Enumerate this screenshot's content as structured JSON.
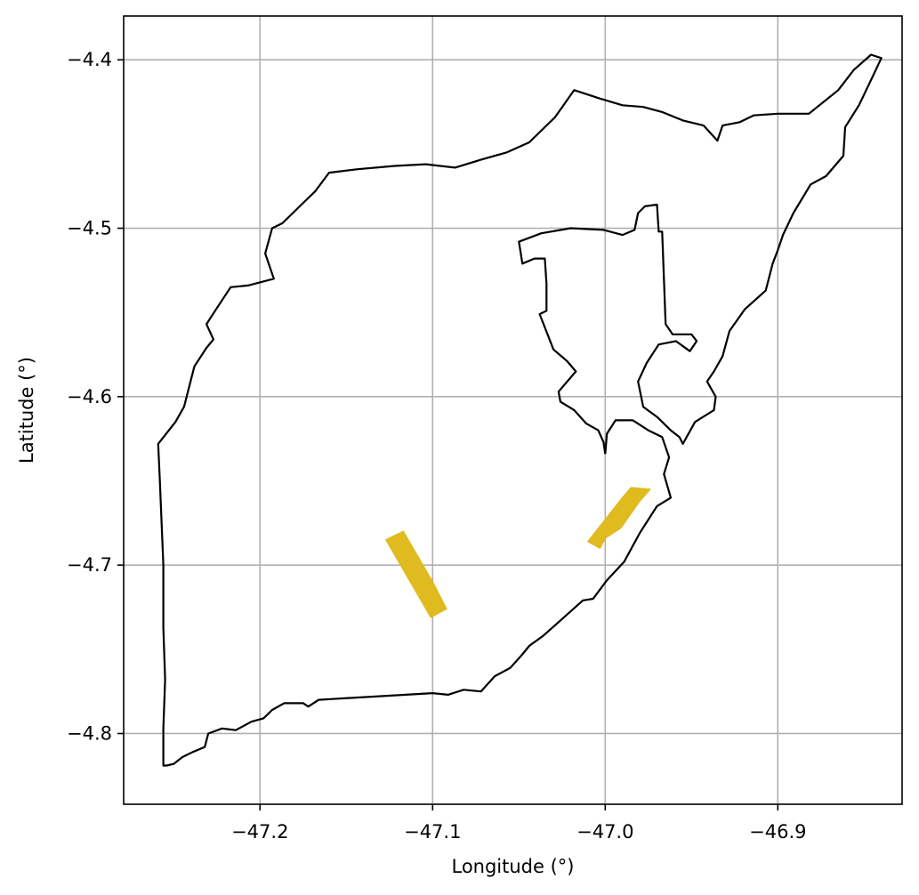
{
  "chart_data": {
    "type": "map",
    "xlabel": "Longitude (°)",
    "ylabel": "Latitude (°)",
    "xlim": [
      -47.279,
      -46.828
    ],
    "ylim": [
      -4.842,
      -4.374
    ],
    "grid": true,
    "x_ticks": [
      -47.2,
      -47.1,
      -47.0,
      -46.9
    ],
    "x_tick_labels": [
      "−47.2",
      "−47.1",
      "−47.0",
      "−46.9"
    ],
    "y_ticks": [
      -4.4,
      -4.5,
      -4.6,
      -4.7,
      -4.8
    ],
    "y_tick_labels": [
      "−4.4",
      "−4.5",
      "−4.6",
      "−4.7",
      "−4.8"
    ],
    "colors": {
      "boundary": "#000000",
      "highlight": "#dfbb1f",
      "grid": "#b0b0b0"
    },
    "outline": [
      [
        -47.254,
        -4.819
      ],
      [
        -47.25,
        -4.818
      ],
      [
        -47.245,
        -4.814
      ],
      [
        -47.239,
        -4.811
      ],
      [
        -47.232,
        -4.808
      ],
      [
        -47.23,
        -4.8
      ],
      [
        -47.222,
        -4.797
      ],
      [
        -47.214,
        -4.798
      ],
      [
        -47.205,
        -4.793
      ],
      [
        -47.198,
        -4.791
      ],
      [
        -47.193,
        -4.786
      ],
      [
        -47.186,
        -4.782
      ],
      [
        -47.175,
        -4.782
      ],
      [
        -47.172,
        -4.784
      ],
      [
        -47.166,
        -4.78
      ],
      [
        -47.1,
        -4.776
      ],
      [
        -47.091,
        -4.777
      ],
      [
        -47.082,
        -4.774
      ],
      [
        -47.072,
        -4.775
      ],
      [
        -47.064,
        -4.766
      ],
      [
        -47.055,
        -4.761
      ],
      [
        -47.048,
        -4.753
      ],
      [
        -47.044,
        -4.748
      ],
      [
        -47.036,
        -4.742
      ],
      [
        -47.025,
        -4.732
      ],
      [
        -47.013,
        -4.721
      ],
      [
        -47.007,
        -4.72
      ],
      [
        -46.999,
        -4.709
      ],
      [
        -46.989,
        -4.698
      ],
      [
        -46.98,
        -4.681
      ],
      [
        -46.97,
        -4.665
      ],
      [
        -46.962,
        -4.66
      ],
      [
        -46.966,
        -4.646
      ],
      [
        -46.963,
        -4.636
      ],
      [
        -46.967,
        -4.624
      ],
      [
        -46.975,
        -4.62
      ],
      [
        -46.984,
        -4.614
      ],
      [
        -46.994,
        -4.614
      ],
      [
        -46.999,
        -4.622
      ],
      [
        -47.0,
        -4.634
      ]
    ],
    "bay": [
      [
        -47.0,
        -4.634
      ],
      [
        -47.001,
        -4.627
      ],
      [
        -47.004,
        -4.62
      ],
      [
        -47.011,
        -4.616
      ],
      [
        -47.018,
        -4.608
      ],
      [
        -47.026,
        -4.603
      ],
      [
        -47.027,
        -4.597
      ],
      [
        -47.022,
        -4.591
      ],
      [
        -47.017,
        -4.585
      ],
      [
        -47.022,
        -4.579
      ],
      [
        -47.03,
        -4.572
      ],
      [
        -47.038,
        -4.551
      ],
      [
        -47.034,
        -4.549
      ],
      [
        -47.034,
        -4.533
      ],
      [
        -47.035,
        -4.518
      ],
      [
        -47.041,
        -4.518
      ],
      [
        -47.048,
        -4.521
      ],
      [
        -47.05,
        -4.508
      ],
      [
        -47.037,
        -4.503
      ],
      [
        -47.02,
        -4.5
      ],
      [
        -47.001,
        -4.501
      ],
      [
        -46.99,
        -4.504
      ],
      [
        -46.983,
        -4.501
      ],
      [
        -46.981,
        -4.491
      ],
      [
        -46.977,
        -4.487
      ],
      [
        -46.97,
        -4.486
      ],
      [
        -46.969,
        -4.502
      ],
      [
        -46.967,
        -4.502
      ],
      [
        -46.965,
        -4.557
      ],
      [
        -46.961,
        -4.563
      ],
      [
        -46.95,
        -4.563
      ],
      [
        -46.947,
        -4.567
      ],
      [
        -46.951,
        -4.573
      ],
      [
        -46.959,
        -4.567
      ],
      [
        -46.969,
        -4.569
      ],
      [
        -46.976,
        -4.58
      ],
      [
        -46.981,
        -4.591
      ],
      [
        -46.978,
        -4.606
      ],
      [
        -46.97,
        -4.612
      ],
      [
        -46.962,
        -4.62
      ],
      [
        -46.957,
        -4.624
      ],
      [
        -46.955,
        -4.628
      ],
      [
        -46.948,
        -4.615
      ],
      [
        -46.937,
        -4.608
      ],
      [
        -46.936,
        -4.6
      ],
      [
        -46.941,
        -4.591
      ],
      [
        -46.937,
        -4.585
      ],
      [
        -46.932,
        -4.576
      ],
      [
        -46.928,
        -4.561
      ],
      [
        -46.919,
        -4.548
      ],
      [
        -46.907,
        -4.537
      ],
      [
        -46.903,
        -4.521
      ],
      [
        -46.9,
        -4.513
      ],
      [
        -46.897,
        -4.504
      ],
      [
        -46.891,
        -4.491
      ],
      [
        -46.881,
        -4.474
      ],
      [
        -46.872,
        -4.469
      ],
      [
        -46.862,
        -4.457
      ],
      [
        -46.861,
        -4.44
      ],
      [
        -46.853,
        -4.427
      ],
      [
        -46.846,
        -4.412
      ],
      [
        -46.84,
        -4.399
      ],
      [
        -46.846,
        -4.397
      ],
      [
        -46.856,
        -4.406
      ],
      [
        -46.865,
        -4.418
      ],
      [
        -46.882,
        -4.432
      ],
      [
        -46.9,
        -4.432
      ],
      [
        -46.914,
        -4.433
      ],
      [
        -46.922,
        -4.437
      ],
      [
        -46.932,
        -4.439
      ],
      [
        -46.935,
        -4.448
      ],
      [
        -46.943,
        -4.439
      ],
      [
        -46.955,
        -4.436
      ],
      [
        -46.967,
        -4.431
      ],
      [
        -46.978,
        -4.428
      ],
      [
        -46.99,
        -4.427
      ],
      [
        -47.003,
        -4.423
      ],
      [
        -47.018,
        -4.418
      ],
      [
        -47.029,
        -4.434
      ],
      [
        -47.044,
        -4.449
      ],
      [
        -47.057,
        -4.455
      ],
      [
        -47.071,
        -4.459
      ],
      [
        -47.087,
        -4.464
      ],
      [
        -47.104,
        -4.462
      ],
      [
        -47.122,
        -4.463
      ],
      [
        -47.144,
        -4.465
      ],
      [
        -47.16,
        -4.467
      ],
      [
        -47.168,
        -4.478
      ],
      [
        -47.176,
        -4.486
      ],
      [
        -47.187,
        -4.497
      ],
      [
        -47.193,
        -4.5
      ],
      [
        -47.197,
        -4.515
      ],
      [
        -47.192,
        -4.53
      ],
      [
        -47.207,
        -4.534
      ],
      [
        -47.217,
        -4.535
      ],
      [
        -47.226,
        -4.549
      ],
      [
        -47.231,
        -4.557
      ],
      [
        -47.227,
        -4.566
      ],
      [
        -47.231,
        -4.571
      ],
      [
        -47.238,
        -4.582
      ],
      [
        -47.244,
        -4.606
      ],
      [
        -47.249,
        -4.615
      ],
      [
        -47.259,
        -4.628
      ],
      [
        -47.258,
        -4.65
      ],
      [
        -47.256,
        -4.7
      ],
      [
        -47.256,
        -4.737
      ],
      [
        -47.255,
        -4.768
      ],
      [
        -47.256,
        -4.797
      ],
      [
        -47.256,
        -4.819
      ],
      [
        -47.254,
        -4.819
      ]
    ],
    "highlight_patches": [
      [
        [
          -47.127,
          -4.685
        ],
        [
          -47.117,
          -4.68
        ],
        [
          -47.1,
          -4.71
        ],
        [
          -47.092,
          -4.726
        ],
        [
          -47.101,
          -4.731
        ]
      ],
      [
        [
          -47.01,
          -4.686
        ],
        [
          -46.99,
          -4.66
        ],
        [
          -46.985,
          -4.654
        ],
        [
          -46.974,
          -4.655
        ],
        [
          -46.98,
          -4.662
        ],
        [
          -46.991,
          -4.678
        ],
        [
          -47.0,
          -4.684
        ],
        [
          -47.003,
          -4.69
        ]
      ]
    ]
  }
}
